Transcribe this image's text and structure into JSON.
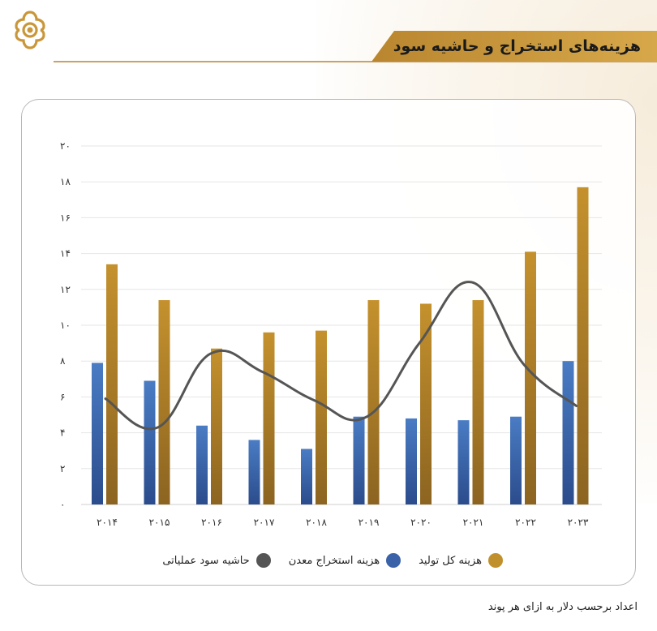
{
  "header": {
    "title": "هزینه‌های استخراج و حاشیه سود"
  },
  "footnote": "اعداد برحسب دلار به ازای هر پوند",
  "colors": {
    "total_cost": "#b8862a",
    "mining_cost": "#2f5597",
    "margin": "#555555",
    "brand": "#c9973a"
  },
  "legend": [
    {
      "label": "هزینه کل تولید",
      "color": "#c0902c"
    },
    {
      "label": "هزینه استخراج معدن",
      "color": "#3a62a8"
    },
    {
      "label": "حاشیه سود عملیاتی",
      "color": "#555555"
    }
  ],
  "chart_data": {
    "type": "bar",
    "categories": [
      "۲۰۱۴",
      "۲۰۱۵",
      "۲۰۱۶",
      "۲۰۱۷",
      "۲۰۱۸",
      "۲۰۱۹",
      "۲۰۲۰",
      "۲۰۲۱",
      "۲۰۲۲",
      "۲۰۲۳"
    ],
    "y_ticks": [
      "۰",
      "۲",
      "۴",
      "۶",
      "۸",
      "۱۰",
      "۱۲",
      "۱۴",
      "۱۶",
      "۱۸",
      "۲۰"
    ],
    "ylim": [
      0,
      20
    ],
    "grid": true,
    "legend_position": "bottom",
    "series": [
      {
        "name": "هزینه استخراج معدن",
        "kind": "bar",
        "values": [
          7.9,
          6.9,
          4.4,
          3.6,
          3.1,
          4.9,
          4.8,
          4.7,
          4.9,
          8.0
        ]
      },
      {
        "name": "هزینه کل تولید",
        "kind": "bar",
        "values": [
          13.4,
          11.4,
          8.7,
          9.6,
          9.7,
          11.4,
          11.2,
          11.4,
          14.1,
          17.7
        ]
      },
      {
        "name": "حاشیه سود عملیاتی",
        "kind": "line",
        "values": [
          5.9,
          4.3,
          8.4,
          7.4,
          5.8,
          4.9,
          9.0,
          12.4,
          7.8,
          5.5
        ]
      }
    ]
  }
}
